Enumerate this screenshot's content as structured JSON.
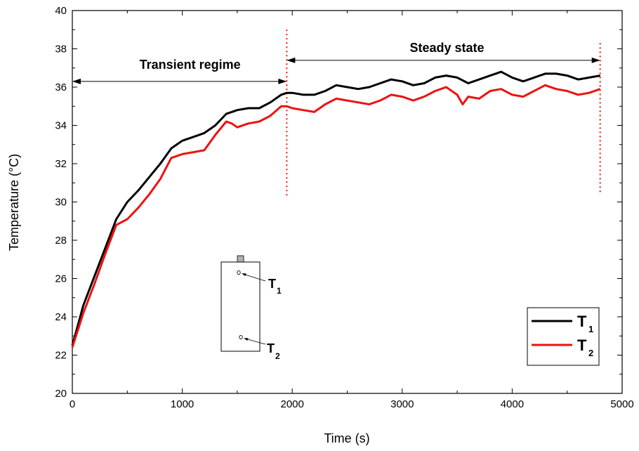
{
  "chart_data": {
    "type": "line",
    "title": "",
    "xlabel": "Time (s)",
    "ylabel": "Temperature (°C)",
    "xlim": [
      0,
      5000
    ],
    "ylim": [
      20,
      40
    ],
    "x_ticks": [
      0,
      1000,
      2000,
      3000,
      4000,
      5000
    ],
    "y_ticks": [
      20,
      22,
      24,
      26,
      28,
      30,
      32,
      34,
      36,
      38,
      40
    ],
    "x_tick_labels": [
      "0",
      "1000",
      "2000",
      "3000",
      "4000",
      "5000"
    ],
    "y_tick_labels": [
      "20",
      "22",
      "24",
      "26",
      "28",
      "30",
      "32",
      "34",
      "36",
      "38",
      "40"
    ],
    "grid": false,
    "legend_position": "bottom-right",
    "series": [
      {
        "name": "T1",
        "legend_main": "T",
        "legend_sub": "1",
        "color": "#000000",
        "x": [
          0,
          100,
          200,
          300,
          400,
          500,
          600,
          700,
          800,
          900,
          1000,
          1100,
          1200,
          1300,
          1400,
          1450,
          1500,
          1600,
          1700,
          1800,
          1900,
          1950,
          2000,
          2100,
          2200,
          2300,
          2400,
          2500,
          2600,
          2700,
          2800,
          2900,
          3000,
          3100,
          3200,
          3300,
          3400,
          3500,
          3600,
          3700,
          3800,
          3900,
          4000,
          4100,
          4200,
          4300,
          4400,
          4500,
          4600,
          4700,
          4800
        ],
        "y": [
          22.5,
          24.6,
          26.1,
          27.6,
          29.1,
          30.0,
          30.6,
          31.3,
          32.0,
          32.8,
          33.2,
          33.4,
          33.6,
          34.0,
          34.6,
          34.7,
          34.8,
          34.9,
          34.9,
          35.2,
          35.6,
          35.7,
          35.7,
          35.6,
          35.6,
          35.8,
          36.1,
          36.0,
          35.9,
          36.0,
          36.2,
          36.4,
          36.3,
          36.1,
          36.2,
          36.5,
          36.6,
          36.5,
          36.2,
          36.4,
          36.6,
          36.8,
          36.5,
          36.3,
          36.5,
          36.7,
          36.7,
          36.6,
          36.4,
          36.5,
          36.6
        ]
      },
      {
        "name": "T2",
        "legend_main": "T",
        "legend_sub": "2",
        "color": "#ee1111",
        "x": [
          0,
          100,
          200,
          300,
          400,
          500,
          600,
          700,
          800,
          900,
          1000,
          1100,
          1200,
          1300,
          1400,
          1450,
          1500,
          1600,
          1700,
          1800,
          1900,
          1950,
          2000,
          2100,
          2200,
          2300,
          2400,
          2500,
          2600,
          2700,
          2800,
          2900,
          3000,
          3100,
          3200,
          3300,
          3400,
          3500,
          3550,
          3600,
          3700,
          3800,
          3900,
          4000,
          4100,
          4200,
          4300,
          4400,
          4500,
          4600,
          4700,
          4800
        ],
        "y": [
          22.4,
          24.2,
          25.7,
          27.3,
          28.8,
          29.1,
          29.7,
          30.4,
          31.2,
          32.3,
          32.5,
          32.6,
          32.7,
          33.5,
          34.2,
          34.1,
          33.9,
          34.1,
          34.2,
          34.5,
          35.0,
          35.0,
          34.9,
          34.8,
          34.7,
          35.1,
          35.4,
          35.3,
          35.2,
          35.1,
          35.3,
          35.6,
          35.5,
          35.3,
          35.5,
          35.8,
          36.0,
          35.6,
          35.1,
          35.5,
          35.4,
          35.8,
          35.9,
          35.6,
          35.5,
          35.8,
          36.1,
          35.9,
          35.8,
          35.6,
          35.7,
          35.9
        ]
      }
    ],
    "annotations": {
      "transient": {
        "text": "Transient regime",
        "x_start": 0,
        "x_end": 1950,
        "y": 36.3
      },
      "steady": {
        "text": "Steady state",
        "x_start": 1950,
        "x_end": 4800,
        "y": 37.4
      },
      "dividers": [
        1950,
        4800
      ],
      "divider_color": "#ee1111"
    },
    "inset": {
      "sensor1_main": "T",
      "sensor1_sub": "1",
      "sensor2_main": "T",
      "sensor2_sub": "2"
    }
  }
}
